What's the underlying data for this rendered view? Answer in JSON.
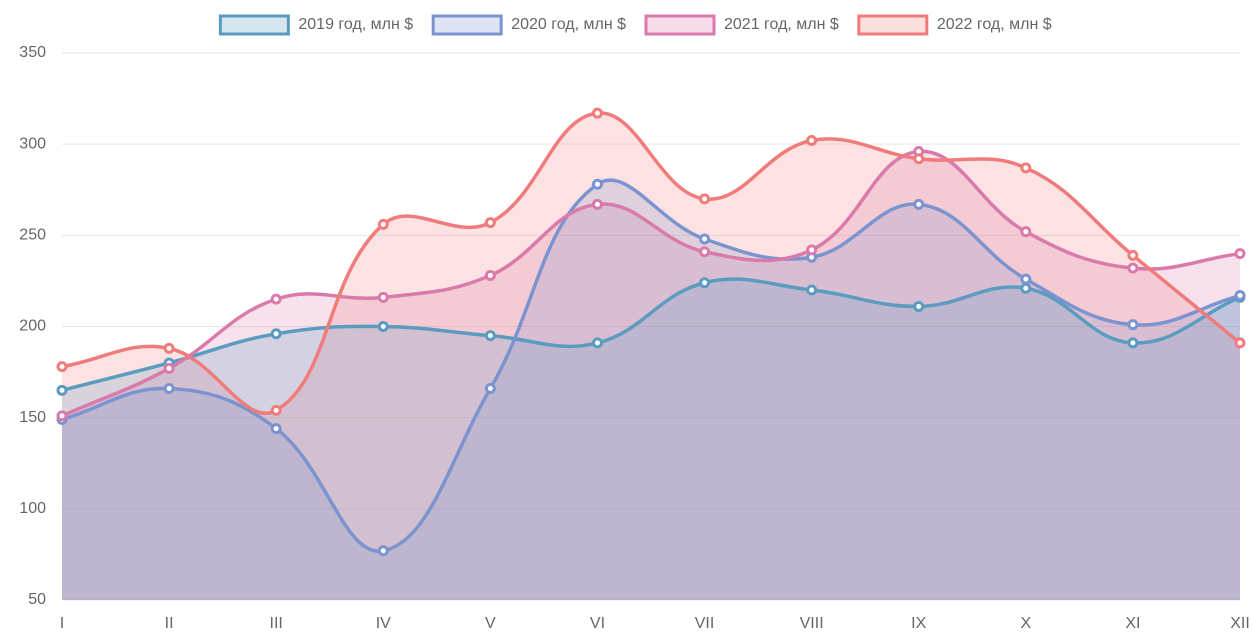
{
  "chart_data": {
    "type": "area",
    "categories": [
      "I",
      "II",
      "III",
      "IV",
      "V",
      "VI",
      "VII",
      "VIII",
      "IX",
      "X",
      "XI",
      "XII"
    ],
    "series": [
      {
        "name": "2019 год, млн $",
        "color": "#5b9bc0",
        "values": [
          165,
          180,
          196,
          200,
          195,
          191,
          224,
          220,
          211,
          221,
          191,
          216
        ]
      },
      {
        "name": "2020 год, млн $",
        "color": "#7b93cf",
        "values": [
          149,
          166,
          144,
          77,
          166,
          278,
          248,
          238,
          267,
          226,
          201,
          217
        ]
      },
      {
        "name": "2021 год, млн $",
        "color": "#d97aaa",
        "values": [
          151,
          177,
          215,
          216,
          228,
          267,
          241,
          242,
          296,
          252,
          232,
          240
        ]
      },
      {
        "name": "2022 год, млн $",
        "color": "#f07b7b",
        "values": [
          178,
          188,
          154,
          256,
          257,
          317,
          270,
          302,
          292,
          287,
          239,
          191
        ]
      }
    ],
    "ylim": [
      50,
      350
    ],
    "yticks": [
      50,
      100,
      150,
      200,
      250,
      300,
      350
    ],
    "grid": true,
    "legend": "top"
  }
}
